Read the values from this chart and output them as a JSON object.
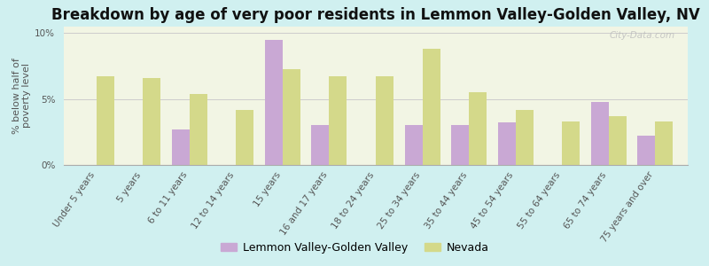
{
  "title": "Breakdown by age of very poor residents in Lemmon Valley-Golden Valley, NV",
  "ylabel": "% below half of\npoverty level",
  "categories": [
    "Under 5 years",
    "5 years",
    "6 to 11 years",
    "12 to 14 years",
    "15 years",
    "16 and 17 years",
    "18 to 24 years",
    "25 to 34 years",
    "35 to 44 years",
    "45 to 54 years",
    "55 to 64 years",
    "65 to 74 years",
    "75 years and over"
  ],
  "lv_values": [
    0,
    0,
    2.7,
    0,
    9.5,
    3.0,
    0,
    3.0,
    3.0,
    3.2,
    0,
    4.8,
    2.2
  ],
  "nv_values": [
    6.7,
    6.6,
    5.4,
    4.2,
    7.3,
    6.7,
    6.7,
    8.8,
    5.5,
    4.2,
    3.3,
    3.7,
    3.3
  ],
  "lv_color": "#c9a8d4",
  "nv_color": "#d4d98a",
  "background_color": "#d0f0f0",
  "plot_bg_color": "#f2f5e4",
  "ylim": [
    0,
    10.5
  ],
  "yticks": [
    0,
    5,
    10
  ],
  "ytick_labels": [
    "0%",
    "5%",
    "10%"
  ],
  "legend_lv": "Lemmon Valley-Golden Valley",
  "legend_nv": "Nevada",
  "bar_width": 0.38,
  "title_fontsize": 12,
  "axis_fontsize": 8,
  "tick_fontsize": 7.5,
  "legend_fontsize": 9
}
